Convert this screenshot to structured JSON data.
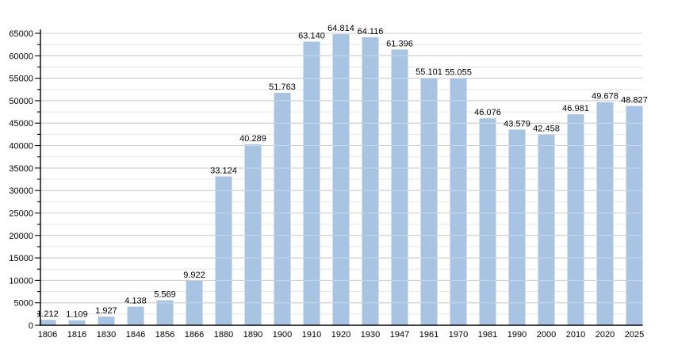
{
  "chart_data": {
    "type": "bar",
    "title": "",
    "xlabel": "",
    "ylabel": "",
    "categories": [
      "1806",
      "1816",
      "1830",
      "1846",
      "1856",
      "1866",
      "1880",
      "1890",
      "1900",
      "1910",
      "1920",
      "1930",
      "1947",
      "1961",
      "1970",
      "1981",
      "1990",
      "2000",
      "2010",
      "2020",
      "2025"
    ],
    "values": [
      1212,
      1109,
      1927,
      4138,
      5569,
      9922,
      33124,
      40289,
      51763,
      63140,
      64814,
      64116,
      61396,
      55101,
      55055,
      46076,
      43579,
      42458,
      46981,
      49678,
      48827
    ],
    "value_labels": [
      "1.212",
      "1.109",
      "1.927",
      "4.138",
      "5.569",
      "9.922",
      "33.124",
      "40.289",
      "51.763",
      "63.140",
      "64.814",
      "64.116",
      "61.396",
      "55.101",
      "55.055",
      "46.076",
      "43.579",
      "42.458",
      "46.981",
      "49.678",
      "48.827"
    ],
    "ylim": [
      0,
      65000
    ],
    "y_major_step": 5000,
    "y_minor_step": 2500,
    "y_tick_labels": [
      "0",
      "5000",
      "10000",
      "15000",
      "20000",
      "25000",
      "30000",
      "35000",
      "40000",
      "45000",
      "50000",
      "55000",
      "60000",
      "65000"
    ],
    "grid": "on",
    "legend": "none",
    "colors": {
      "bar": "#a8c4e2",
      "grid_major": "#adadad",
      "grid_minor": "#e5e5e5",
      "axis": "#000000",
      "text": "#000000",
      "background": "#ffffff"
    }
  }
}
